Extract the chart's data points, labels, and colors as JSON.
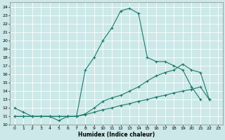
{
  "xlabel": "Humidex (Indice chaleur)",
  "bg_color": "#cce8e8",
  "grid_color": "#b8d8d8",
  "line_color": "#1a7a6a",
  "xlim": [
    -0.5,
    23.5
  ],
  "ylim": [
    10,
    24.5
  ],
  "xticks": [
    0,
    1,
    2,
    3,
    4,
    5,
    6,
    7,
    8,
    9,
    10,
    11,
    12,
    13,
    14,
    15,
    16,
    17,
    18,
    19,
    20,
    21,
    22,
    23
  ],
  "yticks": [
    10,
    11,
    12,
    13,
    14,
    15,
    16,
    17,
    18,
    19,
    20,
    21,
    22,
    23,
    24
  ],
  "line1_x": [
    0,
    1,
    2,
    3,
    4,
    5,
    6,
    7,
    8,
    9,
    10,
    11,
    12,
    13,
    14,
    15,
    16,
    17,
    18,
    19,
    20,
    21
  ],
  "line1_y": [
    12.0,
    11.5,
    11.0,
    11.0,
    11.0,
    10.5,
    11.0,
    11.0,
    16.5,
    18.0,
    20.0,
    21.5,
    23.5,
    23.8,
    23.2,
    18.0,
    17.5,
    17.5,
    17.0,
    16.5,
    14.5,
    13.0
  ],
  "line2_x": [
    0,
    1,
    2,
    3,
    4,
    5,
    6,
    7,
    8,
    9,
    10,
    11,
    12,
    13,
    14,
    15,
    16,
    17,
    18,
    19,
    20,
    21,
    22
  ],
  "line2_y": [
    11.0,
    11.0,
    11.0,
    11.0,
    11.0,
    11.0,
    11.0,
    11.0,
    11.3,
    12.0,
    12.8,
    13.2,
    13.5,
    14.0,
    14.5,
    15.2,
    15.8,
    16.2,
    16.5,
    17.2,
    16.5,
    16.2,
    13.0
  ],
  "line3_x": [
    0,
    1,
    2,
    3,
    4,
    5,
    6,
    7,
    8,
    9,
    10,
    11,
    12,
    13,
    14,
    15,
    16,
    17,
    18,
    19,
    20,
    21,
    22
  ],
  "line3_y": [
    11.0,
    11.0,
    11.0,
    11.0,
    11.0,
    11.0,
    11.0,
    11.0,
    11.2,
    11.5,
    11.8,
    12.0,
    12.3,
    12.5,
    12.8,
    13.0,
    13.3,
    13.5,
    13.8,
    14.0,
    14.2,
    14.5,
    13.0
  ]
}
